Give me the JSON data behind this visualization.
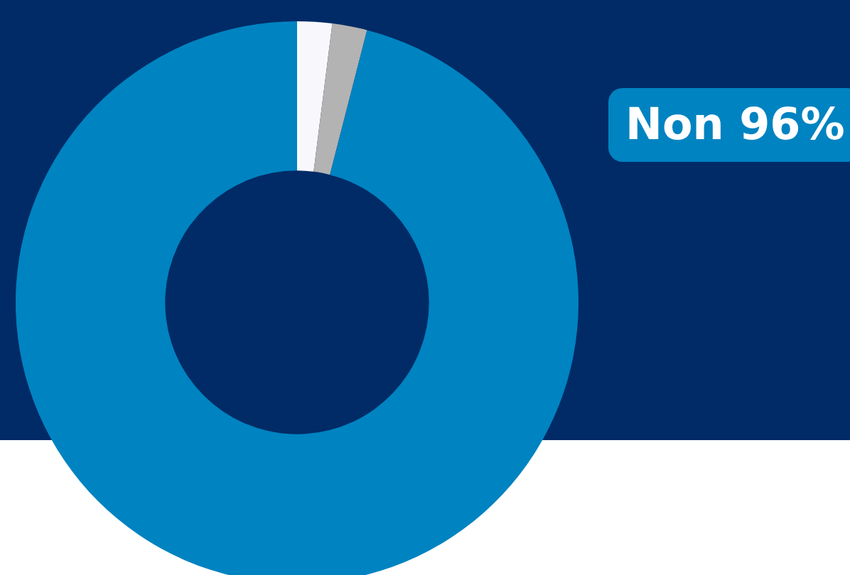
{
  "chart_data": {
    "type": "donut",
    "categories": [
      null,
      null,
      "Non"
    ],
    "values": [
      2,
      2,
      96
    ],
    "colors": [
      "#f8f8fc",
      "#b3b3b3",
      "#0083c1"
    ],
    "value_labels": [
      null,
      null,
      "96%"
    ],
    "legend": false
  }
}
